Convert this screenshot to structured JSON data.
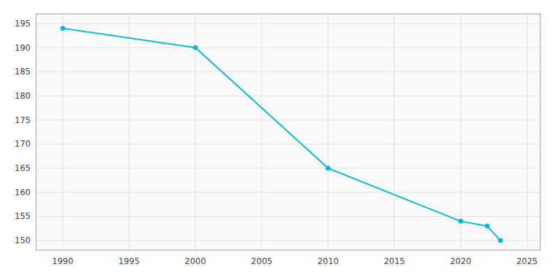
{
  "chart_data": {
    "type": "line",
    "x": [
      1990,
      2000,
      2010,
      2020,
      2022,
      2023
    ],
    "values": [
      194,
      190,
      165,
      154,
      153,
      150
    ],
    "color": "#00bcd4",
    "marker": "circle",
    "xlim": [
      1988,
      2026
    ],
    "ylim": [
      148,
      197
    ],
    "xticks": [
      1990,
      1995,
      2000,
      2005,
      2010,
      2015,
      2020,
      2025
    ],
    "yticks": [
      150,
      155,
      160,
      165,
      170,
      175,
      180,
      185,
      190,
      195
    ],
    "grid": true
  }
}
